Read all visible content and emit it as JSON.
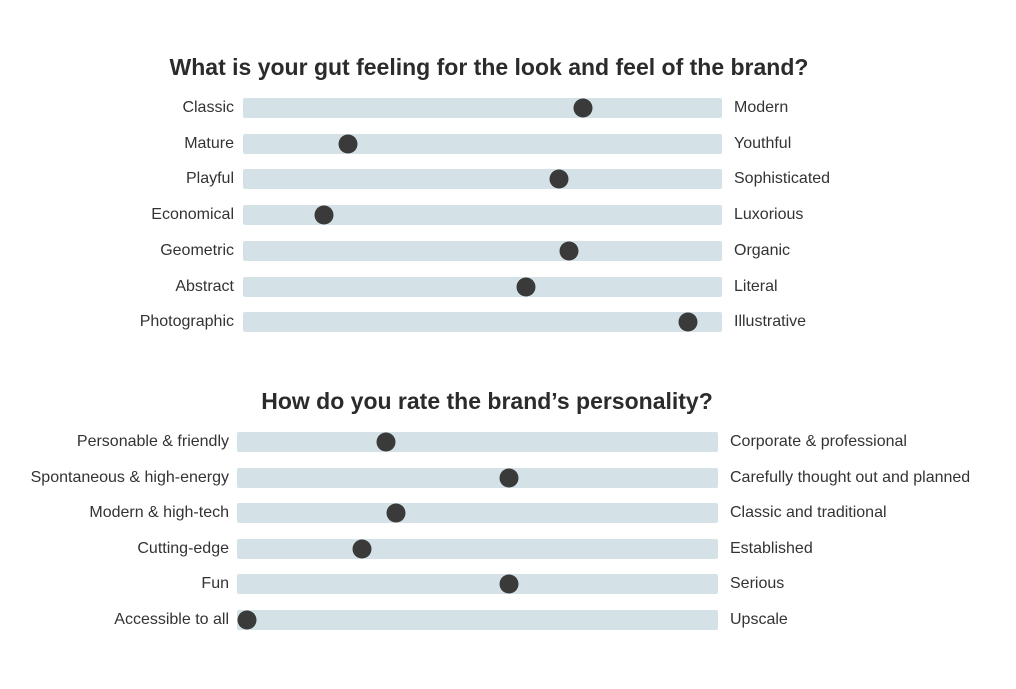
{
  "sections": [
    {
      "title": "What is your gut feeling for the look and feel of the brand?",
      "sliders": [
        {
          "left": "Classic",
          "right": "Modern",
          "value": 0.71
        },
        {
          "left": "Mature",
          "right": "Youthful",
          "value": 0.22
        },
        {
          "left": "Playful",
          "right": "Sophisticated",
          "value": 0.66
        },
        {
          "left": "Economical",
          "right": "Luxorious",
          "value": 0.17
        },
        {
          "left": "Geometric",
          "right": "Organic",
          "value": 0.68
        },
        {
          "left": "Abstract",
          "right": "Literal",
          "value": 0.59
        },
        {
          "left": "Photographic",
          "right": "Illustrative",
          "value": 0.93
        }
      ]
    },
    {
      "title": "How do you rate the brand’s personality?",
      "sliders": [
        {
          "left": "Personable & friendly",
          "right": "Corporate & professional",
          "value": 0.31
        },
        {
          "left": "Spontaneous & high-energy",
          "right": "Carefully thought out and planned",
          "value": 0.565
        },
        {
          "left": "Modern & high-tech",
          "right": "Classic and traditional",
          "value": 0.33
        },
        {
          "left": "Cutting-edge",
          "right": "Established",
          "value": 0.26
        },
        {
          "left": "Fun",
          "right": "Serious",
          "value": 0.565
        },
        {
          "left": "Accessible to all",
          "right": "Upscale",
          "value": 0.02
        }
      ]
    }
  ]
}
